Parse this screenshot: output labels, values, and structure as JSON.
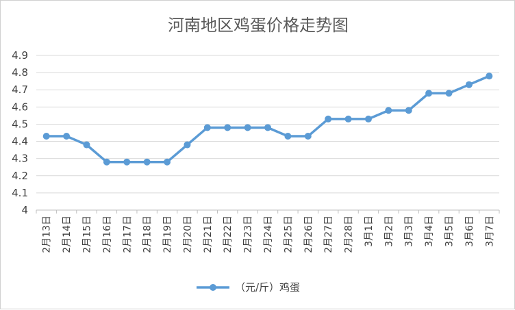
{
  "chart_data": {
    "type": "line",
    "title": "河南地区鸡蛋价格走势图",
    "xlabel": "",
    "ylabel": "",
    "ylim": [
      4,
      4.9
    ],
    "yticks": [
      "4",
      "4.1",
      "4.2",
      "4.3",
      "4.4",
      "4.5",
      "4.6",
      "4.7",
      "4.8",
      "4.9"
    ],
    "categories": [
      "2月13日",
      "2月14日",
      "2月15日",
      "2月16日",
      "2月17日",
      "2月18日",
      "2月19日",
      "2月20日",
      "2月21日",
      "2月22日",
      "2月23日",
      "2月24日",
      "2月25日",
      "2月26日",
      "2月27日",
      "2月28日",
      "3月1日",
      "3月2日",
      "3月3日",
      "3月4日",
      "3月5日",
      "3月6日",
      "3月7日"
    ],
    "series": [
      {
        "name": "（元/斤）鸡蛋",
        "values": [
          4.43,
          4.43,
          4.38,
          4.28,
          4.28,
          4.28,
          4.28,
          4.38,
          4.48,
          4.48,
          4.48,
          4.48,
          4.43,
          4.43,
          4.53,
          4.53,
          4.53,
          4.58,
          4.58,
          4.68,
          4.68,
          4.73,
          4.78
        ]
      }
    ],
    "legend": "bottom",
    "grid": true,
    "colors": {
      "series": "#5b9bd5"
    }
  }
}
